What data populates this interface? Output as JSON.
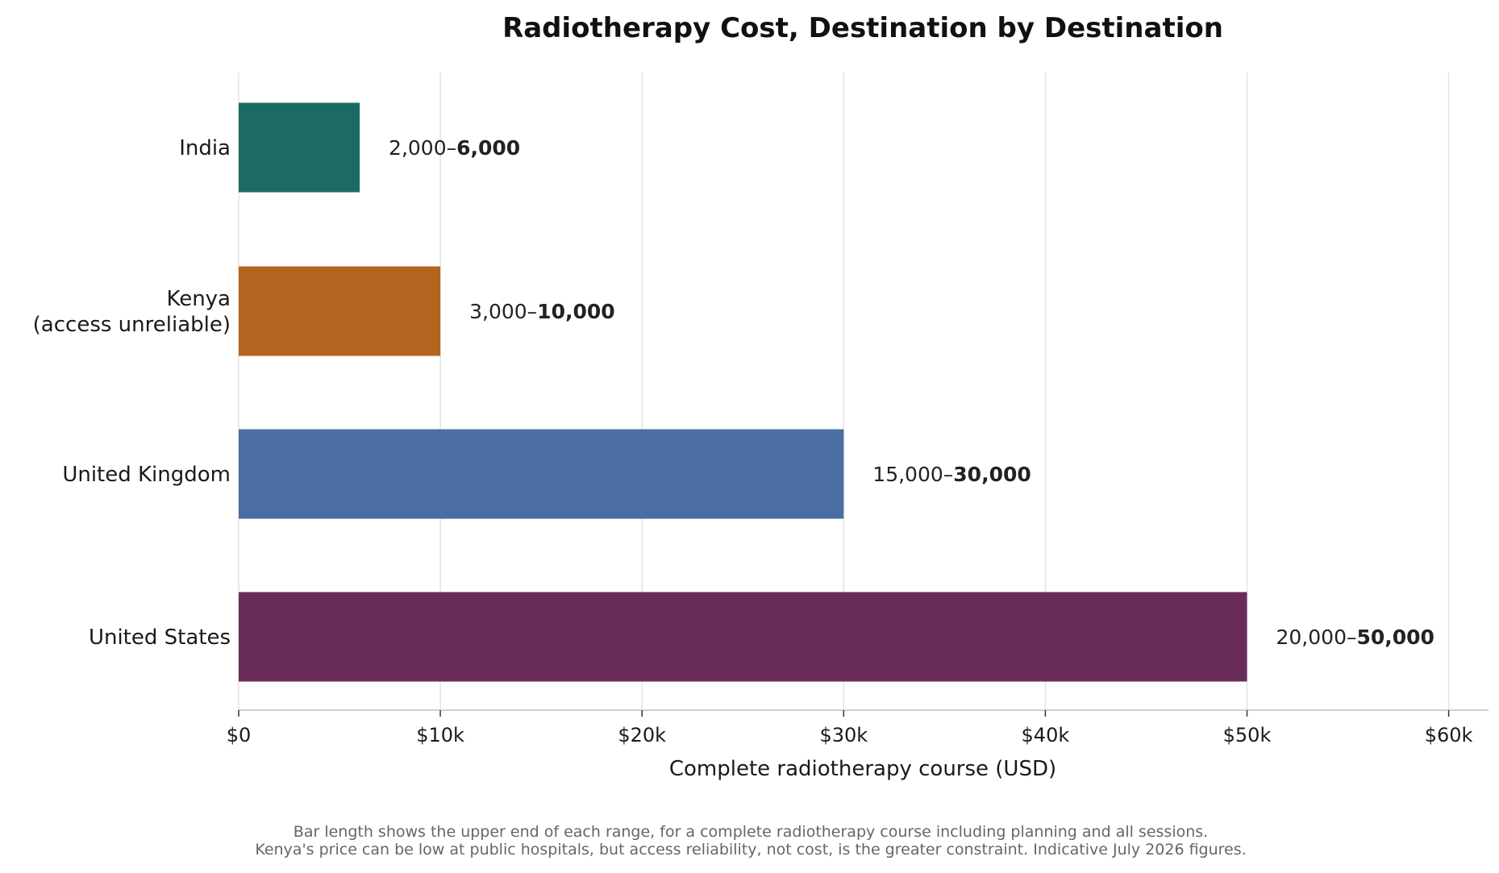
{
  "chart_data": {
    "type": "bar",
    "orientation": "horizontal",
    "title": "Radiotherapy Cost, Destination by Destination",
    "xlabel": "Complete radiotherapy course (USD)",
    "ylabel": "",
    "categories": [
      [
        "India"
      ],
      [
        "Kenya",
        "(access unreliable)"
      ],
      [
        "United Kingdom"
      ],
      [
        "United States"
      ]
    ],
    "values": [
      6000,
      10000,
      30000,
      50000
    ],
    "range_low": [
      "2,000",
      "3,000",
      "15,000",
      "20,000"
    ],
    "range_high": [
      "6,000",
      "10,000",
      "30,000",
      "50,000"
    ],
    "range_low_prefix": "$",
    "range_high_prefix": "$",
    "colors": [
      "#1b6b62",
      "#b3641f",
      "#4a6ea2",
      "#6a2d5b"
    ],
    "xlim": [
      0,
      62000
    ],
    "xticks": [
      0,
      10000,
      20000,
      30000,
      40000,
      50000,
      60000
    ],
    "xtick_labels": [
      "$0",
      "$10k",
      "$20k",
      "$30k",
      "$40k",
      "$50k",
      "$60k"
    ],
    "grid": "vertical",
    "legend": "none"
  },
  "footnote": {
    "line1": "Bar length shows the upper end of each range, for a complete radiotherapy course including planning and all sessions.",
    "line2": "Kenya's price can be low at public hospitals, but access reliability, not cost, is the greater constraint. Indicative July 2026 figures."
  }
}
